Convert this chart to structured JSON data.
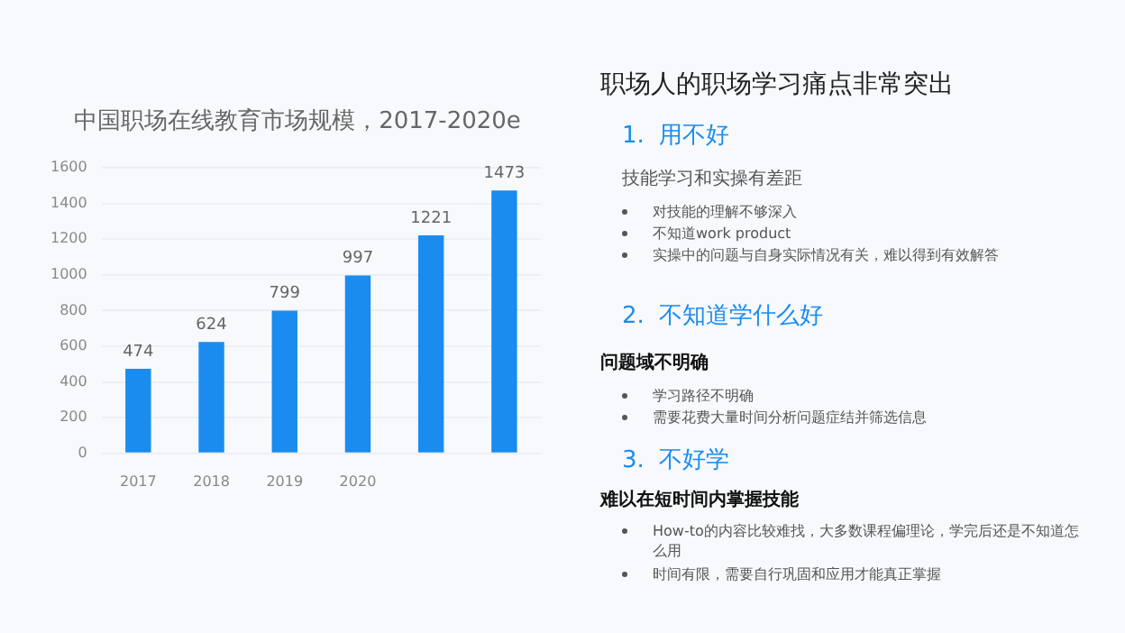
{
  "chart_data": [
    {
      "type": "bar",
      "title": "中国职场在线教育市场规模，2017-2020e",
      "categories": [
        "2017",
        "2018",
        "2019",
        "2020",
        null,
        null
      ],
      "values": [
        474,
        624,
        799,
        997,
        1221,
        1473
      ],
      "color": "#1a8cf0",
      "ylim": [
        0,
        1600
      ],
      "yticks": [
        0,
        200,
        400,
        600,
        800,
        1000,
        1200,
        1400,
        1600
      ],
      "grid": "y",
      "data_labels": true
    },
    {
      "type": "other",
      "title": "职场人的职场学习痛点非常突出",
      "annotations": [
        "1.  用不好",
        "技能学习和实操有差距",
        "对技能的理解不够深入",
        "不知道work product",
        "实操中的问题与自身实际情况有关，难以得到有效解答",
        "2.  不知道学什么好",
        "问题域不明确",
        "学习路径不明确",
        "需要花费大量时间分析问题症结并筛选信息",
        "3.  不好学",
        "难以在短时间内掌握技能",
        "How-to的内容比较难找，大多数课程偏理论，学完后还是不知道怎么用",
        "时间有限，需要自行巩固和应用才能真正掌握"
      ]
    }
  ]
}
